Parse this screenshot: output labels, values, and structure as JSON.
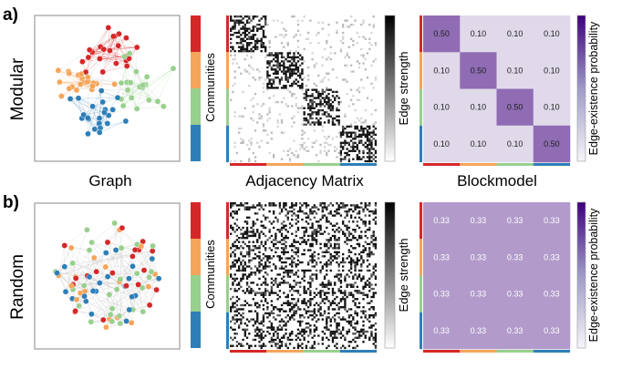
{
  "rows": [
    {
      "letter": "a)",
      "side_label": "Modular",
      "communities_label": "Communities",
      "edge_strength_label": "Edge strength",
      "prob_label": "Edge-existence probability",
      "blockmodel_values": [
        [
          "0.50",
          "0.10",
          "0.10",
          "0.10"
        ],
        [
          "0.10",
          "0.50",
          "0.10",
          "0.10"
        ],
        [
          "0.10",
          "0.10",
          "0.50",
          "0.10"
        ],
        [
          "0.10",
          "0.10",
          "0.10",
          "0.50"
        ]
      ],
      "blockmodel_probs": [
        [
          0.5,
          0.1,
          0.1,
          0.1
        ],
        [
          0.1,
          0.5,
          0.1,
          0.1
        ],
        [
          0.1,
          0.1,
          0.5,
          0.1
        ],
        [
          0.1,
          0.1,
          0.1,
          0.5
        ]
      ],
      "adjacency": {
        "within_density": 0.5,
        "between_density": 0.1
      }
    },
    {
      "letter": "b)",
      "side_label": "Random",
      "communities_label": "Communities",
      "edge_strength_label": "Edge strength",
      "prob_label": "Edge-existence probability",
      "blockmodel_values": [
        [
          "0.33",
          "0.33",
          "0.33",
          "0.33"
        ],
        [
          "0.33",
          "0.33",
          "0.33",
          "0.33"
        ],
        [
          "0.33",
          "0.33",
          "0.33",
          "0.33"
        ],
        [
          "0.33",
          "0.33",
          "0.33",
          "0.33"
        ]
      ],
      "blockmodel_probs": [
        [
          0.33,
          0.33,
          0.33,
          0.33
        ],
        [
          0.33,
          0.33,
          0.33,
          0.33
        ],
        [
          0.33,
          0.33,
          0.33,
          0.33
        ],
        [
          0.33,
          0.33,
          0.33,
          0.33
        ]
      ],
      "adjacency": {
        "within_density": 0.33,
        "between_density": 0.33
      }
    }
  ],
  "column_titles": {
    "graph": "Graph",
    "adjacency": "Adjacency Matrix",
    "blockmodel": "Blockmodel"
  },
  "community_colors": [
    "#d62728",
    "#f5a55a",
    "#98d08e",
    "#2e7fb8"
  ],
  "colors": {
    "prob_low": "#f4f4f8",
    "prob_high": "#3f007d",
    "edge_gray": "#bdbdbd"
  }
}
